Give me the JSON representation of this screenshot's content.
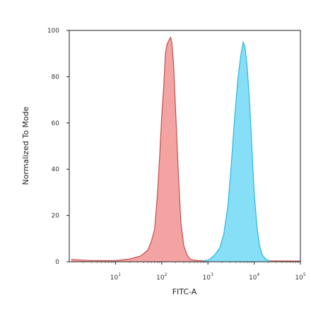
{
  "chart_data": {
    "type": "area",
    "title": "",
    "xlabel": "FITC-A",
    "ylabel": "Normalized To Mode",
    "x_scale": "log",
    "xlim": [
      1,
      100000
    ],
    "ylim": [
      0,
      100
    ],
    "y_ticks": [
      0,
      20,
      40,
      60,
      80,
      100
    ],
    "x_ticks": [
      {
        "value": 10,
        "base": "10",
        "exp": "1"
      },
      {
        "value": 100,
        "base": "10",
        "exp": "2"
      },
      {
        "value": 1000,
        "base": "10",
        "exp": "3"
      },
      {
        "value": 10000,
        "base": "10",
        "exp": "4"
      },
      {
        "value": 100000,
        "base": "10",
        "exp": "5"
      }
    ],
    "grid": false,
    "series": [
      {
        "fill": "#f4a3a3",
        "stroke": "#c0504d",
        "points": [
          [
            1.1,
            1.0
          ],
          [
            3,
            0.5
          ],
          [
            10,
            0.5
          ],
          [
            20,
            1.2
          ],
          [
            35,
            2.5
          ],
          [
            50,
            5
          ],
          [
            60,
            9
          ],
          [
            70,
            14
          ],
          [
            80,
            28
          ],
          [
            90,
            45
          ],
          [
            100,
            63
          ],
          [
            110,
            75
          ],
          [
            120,
            90
          ],
          [
            130,
            94
          ],
          [
            145,
            96
          ],
          [
            155,
            97
          ],
          [
            165,
            95
          ],
          [
            180,
            86
          ],
          [
            200,
            65
          ],
          [
            230,
            37
          ],
          [
            260,
            17
          ],
          [
            300,
            7
          ],
          [
            350,
            3
          ],
          [
            420,
            1
          ],
          [
            600,
            0.5
          ],
          [
            100000,
            0.3
          ]
        ]
      },
      {
        "fill": "#87def7",
        "stroke": "#2cb7da",
        "points": [
          [
            800,
            0.3
          ],
          [
            1100,
            1
          ],
          [
            1400,
            3
          ],
          [
            1800,
            6
          ],
          [
            2200,
            12
          ],
          [
            2700,
            24
          ],
          [
            3200,
            42
          ],
          [
            3800,
            63
          ],
          [
            4500,
            80
          ],
          [
            5200,
            90
          ],
          [
            5800,
            95
          ],
          [
            6300,
            93
          ],
          [
            7000,
            85
          ],
          [
            8000,
            68
          ],
          [
            9000,
            48
          ],
          [
            10000,
            30
          ],
          [
            11500,
            15
          ],
          [
            13000,
            7
          ],
          [
            15000,
            3
          ],
          [
            18000,
            1
          ],
          [
            22000,
            0.3
          ]
        ]
      }
    ]
  }
}
